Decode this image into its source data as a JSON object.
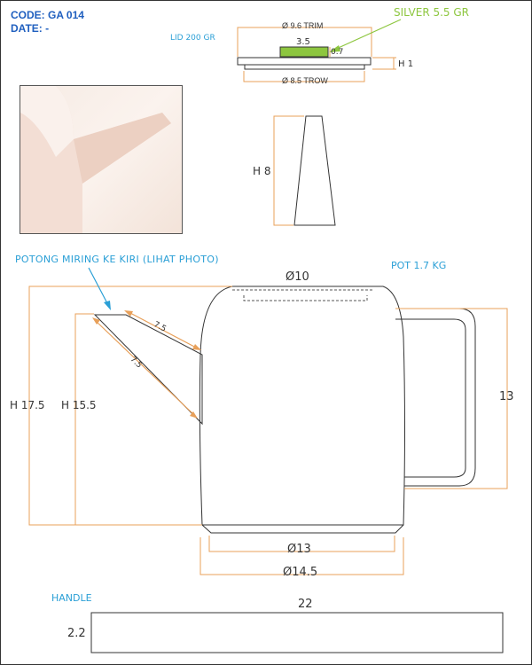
{
  "header": {
    "code": "CODE: GA 014",
    "date": "DATE: -"
  },
  "lid": {
    "label": "LID 200 GR",
    "trim": "Ø 9.6 TRIM",
    "trow": "Ø 8.5 TROW",
    "silver": "SILVER 5.5 GR",
    "silver_width": "3.5",
    "silver_height": "0.7",
    "height": "H 1"
  },
  "knob": {
    "height": "H 8"
  },
  "spout_note": "POTONG MIRING KE KIRI (LIHAT PHOTO)",
  "pot": {
    "weight": "POT 1.7 KG",
    "top_diameter": "Ø10",
    "height_total": "H 17.5",
    "height_body": "H 15.5",
    "spout_top": "7.5",
    "spout_bottom": "7.5",
    "handle_height": "13",
    "base_inner": "Ø13",
    "base_outer": "Ø14.5"
  },
  "handle": {
    "label": "HANDLE",
    "length": "22",
    "width": "2.2"
  },
  "colors": {
    "dim": "#e8a05a",
    "blue": "#2a9fd6",
    "green": "#8dc63f",
    "line": "#333333"
  }
}
